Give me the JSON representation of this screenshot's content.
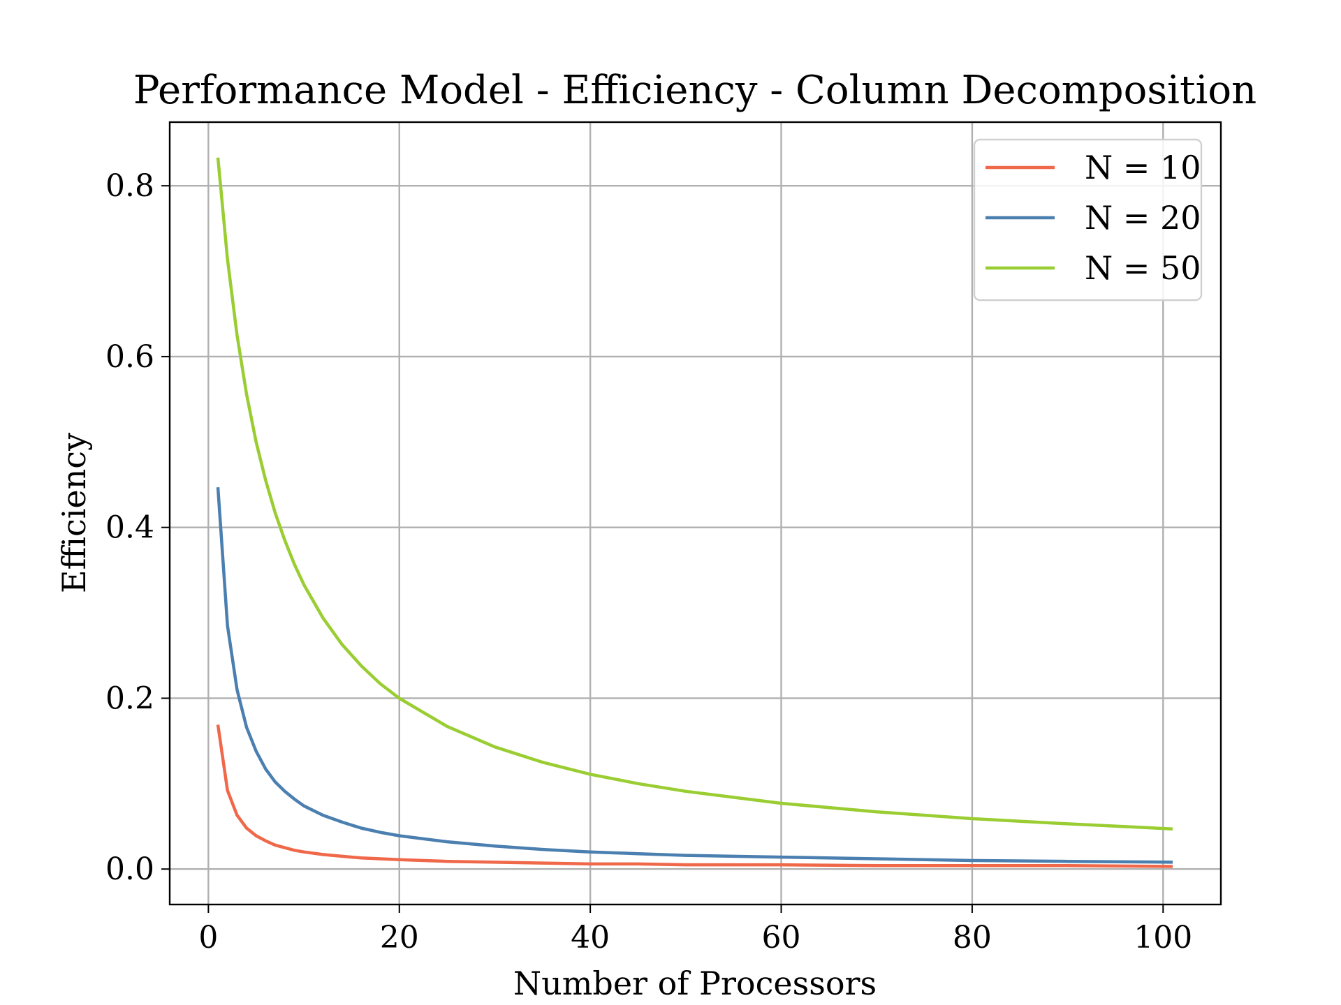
{
  "chart_data": {
    "type": "line",
    "title": "Performance Model - Efficiency - Column Decomposition",
    "xlabel": "Number of Processors",
    "ylabel": "Efficiency",
    "xlim": [
      -4.05,
      106.05
    ],
    "ylim": [
      -0.0415,
      0.8745
    ],
    "xticks": [
      0,
      20,
      40,
      60,
      80,
      100
    ],
    "xtick_labels": [
      "0",
      "20",
      "40",
      "60",
      "80",
      "100"
    ],
    "yticks": [
      0.0,
      0.2,
      0.4,
      0.6,
      0.8
    ],
    "ytick_labels": [
      "0.0",
      "0.2",
      "0.4",
      "0.6",
      "0.8"
    ],
    "grid": true,
    "legend_position": "top-right",
    "series": [
      {
        "name": "N = 10",
        "color": "#f0684a",
        "x": [
          1,
          2,
          3,
          4,
          5,
          6,
          7,
          8,
          9,
          10,
          12,
          14,
          16,
          18,
          20,
          25,
          30,
          35,
          40,
          45,
          50,
          60,
          70,
          80,
          90,
          101
        ],
        "y": [
          0.169,
          0.092,
          0.063,
          0.048,
          0.039,
          0.033,
          0.028,
          0.025,
          0.022,
          0.02,
          0.017,
          0.015,
          0.013,
          0.012,
          0.011,
          0.009,
          0.008,
          0.007,
          0.006,
          0.006,
          0.005,
          0.005,
          0.004,
          0.004,
          0.004,
          0.003
        ]
      },
      {
        "name": "N = 20",
        "color": "#4a7fb0",
        "x": [
          1,
          2,
          3,
          4,
          5,
          6,
          7,
          8,
          9,
          10,
          12,
          14,
          16,
          18,
          20,
          25,
          30,
          35,
          40,
          45,
          50,
          60,
          70,
          80,
          90,
          101
        ],
        "y": [
          0.447,
          0.285,
          0.21,
          0.166,
          0.138,
          0.117,
          0.102,
          0.091,
          0.082,
          0.074,
          0.063,
          0.055,
          0.048,
          0.043,
          0.039,
          0.032,
          0.027,
          0.023,
          0.02,
          0.018,
          0.016,
          0.014,
          0.012,
          0.01,
          0.009,
          0.008
        ]
      },
      {
        "name": "N = 50",
        "color": "#9acd32",
        "x": [
          1,
          2,
          3,
          4,
          5,
          6,
          7,
          8,
          9,
          10,
          12,
          14,
          16,
          18,
          20,
          25,
          30,
          35,
          40,
          45,
          50,
          60,
          70,
          80,
          90,
          101
        ],
        "y": [
          0.833,
          0.714,
          0.625,
          0.556,
          0.5,
          0.455,
          0.417,
          0.385,
          0.357,
          0.333,
          0.294,
          0.263,
          0.238,
          0.217,
          0.2,
          0.167,
          0.143,
          0.125,
          0.111,
          0.1,
          0.091,
          0.077,
          0.067,
          0.059,
          0.053,
          0.047
        ]
      }
    ]
  }
}
